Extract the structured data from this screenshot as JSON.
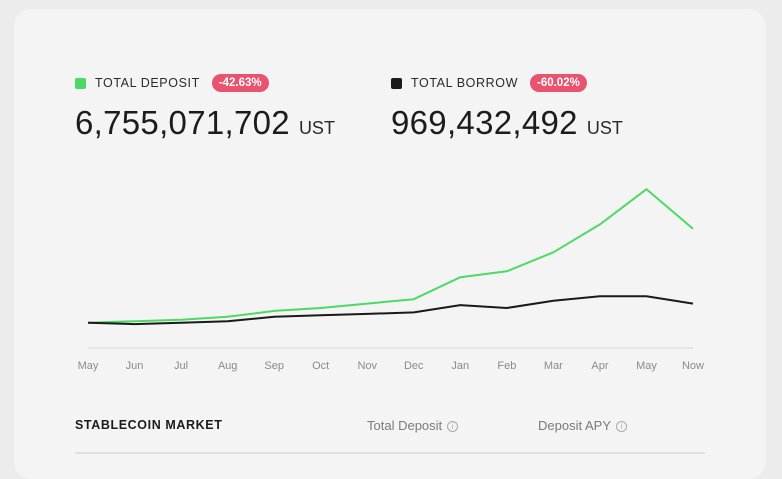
{
  "stats": {
    "deposit": {
      "label": "TOTAL DEPOSIT",
      "change": "-42.63%",
      "value": "6,755,071,702",
      "unit": "UST",
      "color": "#4cd964"
    },
    "borrow": {
      "label": "TOTAL BORROW",
      "change": "-60.02%",
      "value": "969,432,492",
      "unit": "UST",
      "color": "#1a1a1a"
    }
  },
  "chart_data": {
    "type": "line",
    "x": [
      "May",
      "Jun",
      "Jul",
      "Aug",
      "Sep",
      "Oct",
      "Nov",
      "Dec",
      "Jan",
      "Feb",
      "Mar",
      "Apr",
      "May",
      "Now"
    ],
    "series": [
      {
        "name": "TOTAL DEPOSIT",
        "color": "#4cd964",
        "values": [
          0.0,
          0.01,
          0.02,
          0.04,
          0.08,
          0.1,
          0.13,
          0.16,
          0.31,
          0.35,
          0.48,
          0.67,
          0.91,
          0.64
        ]
      },
      {
        "name": "TOTAL BORROW",
        "color": "#1a1a1a",
        "values": [
          0.0,
          -0.01,
          0.0,
          0.01,
          0.04,
          0.05,
          0.06,
          0.07,
          0.12,
          0.1,
          0.15,
          0.18,
          0.18,
          0.13
        ]
      }
    ],
    "ylim": [
      -0.05,
      1.0
    ],
    "grid": false
  },
  "market": {
    "title": "STABLECOIN MARKET",
    "col_deposit": "Total Deposit",
    "col_apy": "Deposit APY",
    "info_glyph": "i"
  }
}
